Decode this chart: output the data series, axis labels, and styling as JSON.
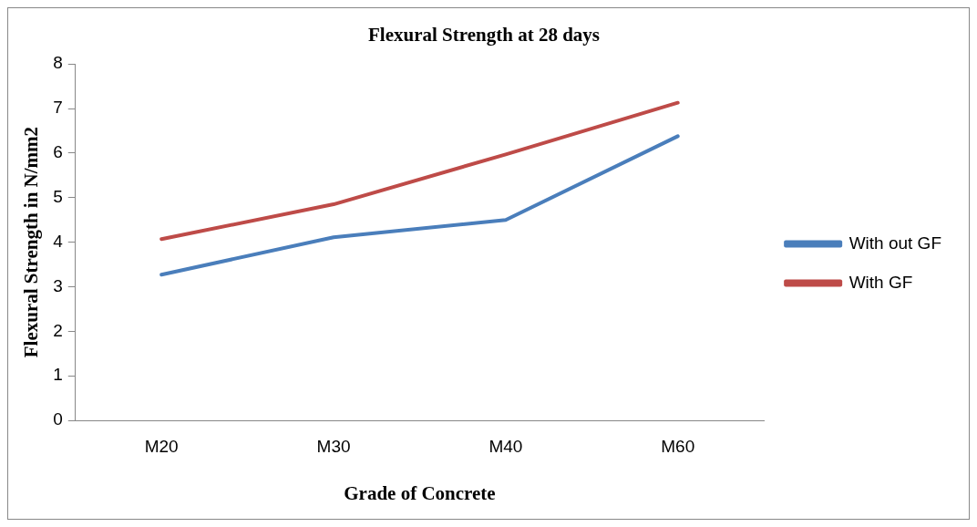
{
  "chart_data": {
    "type": "line",
    "title": "Flexural Strength at 28 days",
    "xlabel": "Grade of Concrete",
    "ylabel": "Flexural Strength in N/mm2",
    "categories": [
      "M20",
      "M30",
      "M40",
      "M60"
    ],
    "series": [
      {
        "name": "With out GF",
        "color": "#4a7ebb",
        "values": [
          3.27,
          4.11,
          4.5,
          6.38
        ]
      },
      {
        "name": "With GF",
        "color": "#be4b48",
        "values": [
          4.07,
          4.85,
          5.97,
          7.13
        ]
      }
    ],
    "ylim": [
      0,
      8
    ],
    "yticks": [
      0,
      1,
      2,
      3,
      4,
      5,
      6,
      7,
      8
    ],
    "grid": false,
    "legend": "right",
    "marker": "none",
    "line_style": "solid"
  }
}
